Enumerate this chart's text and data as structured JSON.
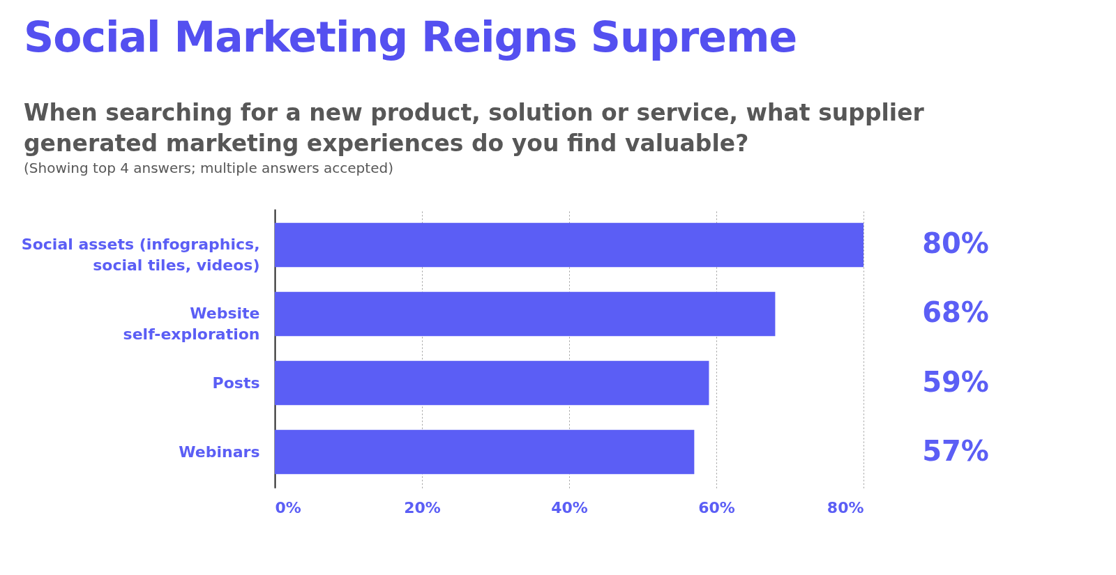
{
  "chart_data": {
    "type": "bar",
    "orientation": "horizontal",
    "title": "Social Marketing Reigns Supreme",
    "subtitle": "When searching for a new product, solution or service, what supplier generated marketing experiences do you find valuable?",
    "annotations": [
      "(Showing top 4 answers; multiple answers accepted)"
    ],
    "categories": [
      "Social assets (infographics,\nsocial tiles, videos)",
      "Website\nself-exploration",
      "Posts",
      "Webinars"
    ],
    "values": [
      80,
      68,
      59,
      57
    ],
    "value_labels": [
      "80%",
      "68%",
      "59%",
      "57%"
    ],
    "color": "#5b5ef5",
    "xlim": [
      0,
      80
    ],
    "xticks": [
      {
        "value": 0,
        "label": "0%"
      },
      {
        "value": 20,
        "label": "20%"
      },
      {
        "value": 40,
        "label": "40%"
      },
      {
        "value": 60,
        "label": "60%"
      },
      {
        "value": 80,
        "label": "80%"
      }
    ],
    "grid": "x"
  }
}
